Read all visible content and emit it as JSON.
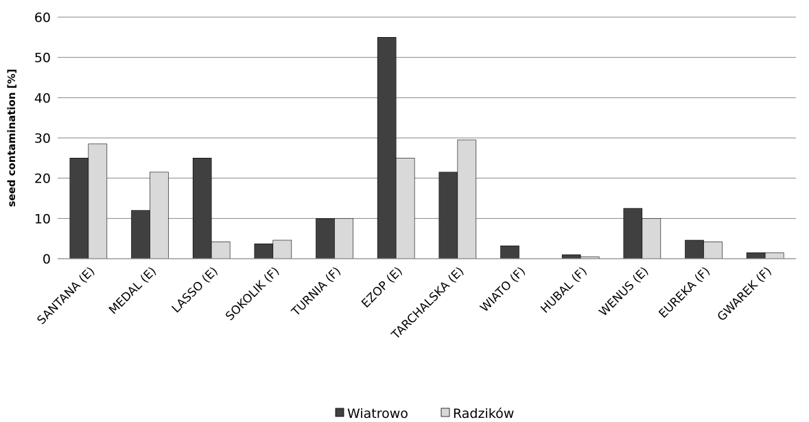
{
  "chart_data": {
    "type": "bar",
    "ylabel": "seed contamination [%]",
    "ylim": [
      0,
      60
    ],
    "yticks": [
      0,
      10,
      20,
      30,
      40,
      50,
      60
    ],
    "grid": true,
    "legend_position": "bottom",
    "categories": [
      "SANTANA (E)",
      "MEDAL (E)",
      "LASSO (E)",
      "SOKOLIK (F)",
      "TURNIA (F)",
      "EZOP (E)",
      "TARCHALSKA (E)",
      "WIATO  (F)",
      "HUBAL (F)",
      "WENUS (E)",
      "EUREKA (F)",
      "GWAREK (F)"
    ],
    "series": [
      {
        "name": "Wiatrowo",
        "color": "#404040",
        "values": [
          25,
          12,
          25,
          3.7,
          10,
          55,
          21.5,
          3.2,
          1,
          12.5,
          4.6,
          1.5
        ]
      },
      {
        "name": "Radzików",
        "color": "#d9d9d9",
        "values": [
          28.5,
          21.5,
          4.2,
          4.6,
          10,
          25,
          29.5,
          0,
          0.5,
          10,
          4.2,
          1.5
        ]
      }
    ]
  }
}
